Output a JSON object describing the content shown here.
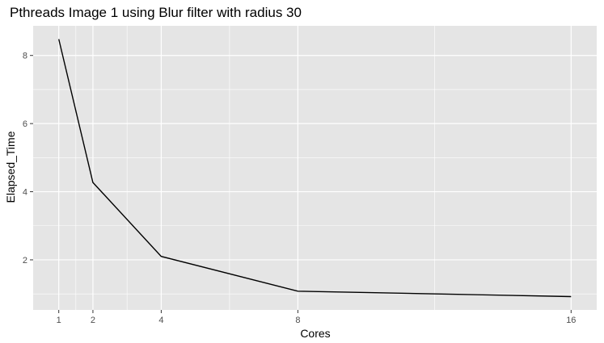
{
  "chart_data": {
    "type": "line",
    "title": "Pthreads Image 1 using Blur filter with radius 30",
    "xlabel": "Cores",
    "ylabel": "Elapsed_Time",
    "x": [
      1,
      2,
      4,
      8,
      16
    ],
    "series": [
      {
        "values": [
          8.48,
          4.27,
          2.1,
          1.08,
          0.92
        ]
      }
    ],
    "xlim": [
      0.25,
      16.75
    ],
    "ylim": [
      0.53,
      8.87
    ],
    "x_ticks": [
      "1",
      "2",
      "4",
      "8",
      "16"
    ],
    "y_ticks": [
      "2",
      "4",
      "6",
      "8"
    ],
    "grid": true,
    "legend": "none",
    "colors": {
      "panel": "#e5e5e5",
      "grid": "#ffffff",
      "line": "#000000",
      "tick_label": "#4d4d4d"
    }
  }
}
